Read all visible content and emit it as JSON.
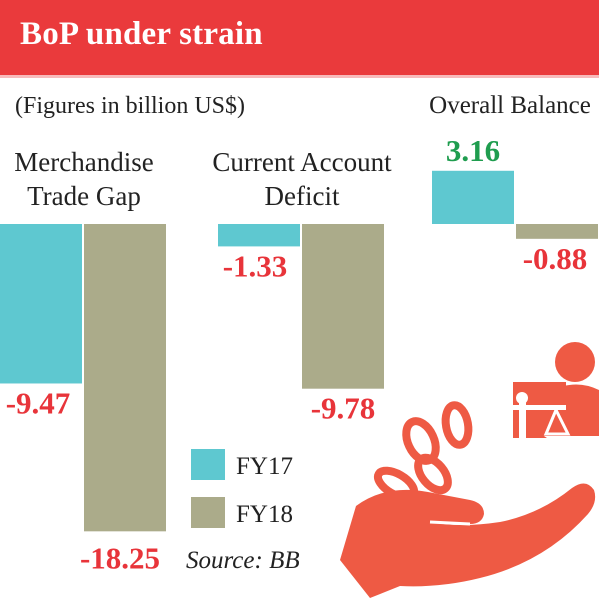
{
  "title": "BoP under strain",
  "subtitle": "(Figures in billion US$)",
  "source": "Source: BB",
  "colors": {
    "title_bg": "#ea3a3c",
    "fy17": "#5ec8d0",
    "fy18": "#abab8a",
    "negative_label": "#e8343a",
    "positive_label": "#1f9d4f",
    "illustration": "#ee5a44"
  },
  "chart_data": {
    "type": "bar",
    "title": "BoP under strain",
    "subtitle": "(Figures in billion US$)",
    "categories": [
      [
        "Merchandise",
        "Trade Gap"
      ],
      [
        "Current Account",
        "Deficit"
      ],
      [
        "Overall Balance"
      ]
    ],
    "series": [
      {
        "name": "FY17",
        "values": [
          -9.47,
          -1.33,
          3.16
        ]
      },
      {
        "name": "FY18",
        "values": [
          -18.25,
          -9.78,
          -0.88
        ]
      }
    ],
    "value_labels": {
      "FY17": [
        "-9.47",
        "-1.33",
        "3.16"
      ],
      "FY18": [
        "-18.25",
        "-9.78",
        "-0.88"
      ]
    },
    "legend_position": "bottom-center",
    "grid": false,
    "source": "Source: BB"
  },
  "illustration": {
    "icon": "hand-coins-balance-scale-icon"
  }
}
